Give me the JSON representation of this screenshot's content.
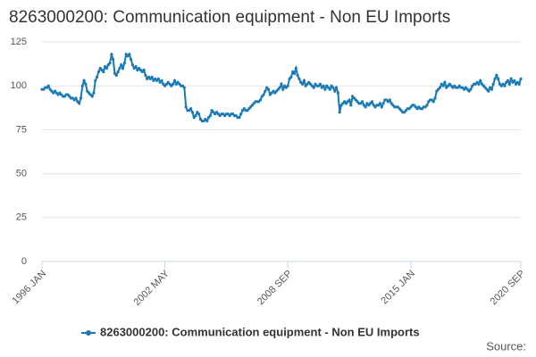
{
  "chart_data": {
    "type": "line",
    "title": "8263000200: Communication equipment - Non EU Imports",
    "source": "Source:",
    "categories": [
      "1996 JAN",
      null,
      null,
      null,
      null,
      null,
      null,
      null,
      null,
      null,
      null,
      null,
      null,
      null,
      null,
      null,
      null,
      null,
      null,
      null,
      null,
      null,
      null,
      null,
      null,
      null,
      null,
      null,
      null,
      null,
      null,
      null,
      null,
      null,
      null,
      null,
      null,
      null,
      null,
      null,
      null,
      null,
      null,
      null,
      null,
      null,
      null,
      null,
      null,
      null,
      null,
      null,
      null,
      null,
      null,
      null,
      null,
      null,
      null,
      null,
      null,
      null,
      null,
      null,
      null,
      null,
      null,
      null,
      null,
      null,
      null,
      null,
      null,
      null,
      null,
      null,
      "2002 MAY",
      null,
      null,
      null,
      null,
      null,
      null,
      null,
      null,
      null,
      null,
      null,
      null,
      null,
      null,
      null,
      null,
      null,
      null,
      null,
      null,
      null,
      null,
      null,
      null,
      null,
      null,
      null,
      null,
      null,
      null,
      null,
      null,
      null,
      null,
      null,
      null,
      null,
      null,
      null,
      null,
      null,
      null,
      null,
      null,
      null,
      null,
      null,
      null,
      null,
      null,
      null,
      null,
      null,
      null,
      null,
      null,
      null,
      null,
      null,
      null,
      null,
      null,
      null,
      null,
      null,
      null,
      null,
      null,
      null,
      null,
      null,
      null,
      null,
      null,
      null,
      "2008 SEP",
      null,
      null,
      null,
      null,
      null,
      null,
      null,
      null,
      null,
      null,
      null,
      null,
      null,
      null,
      null,
      null,
      null,
      null,
      null,
      null,
      null,
      null,
      null,
      null,
      null,
      null,
      null,
      null,
      null,
      null,
      null,
      null,
      null,
      null,
      null,
      null,
      null,
      null,
      null,
      null,
      null,
      null,
      null,
      null,
      null,
      null,
      null,
      null,
      null,
      null,
      null,
      null,
      null,
      null,
      null,
      null,
      null,
      null,
      null,
      null,
      null,
      null,
      null,
      null,
      null,
      null,
      null,
      null,
      null,
      null,
      null,
      null,
      null,
      null,
      null,
      "2015 JAN",
      null,
      null,
      null,
      null,
      null,
      null,
      null,
      null,
      null,
      null,
      null,
      null,
      null,
      null,
      null,
      null,
      null,
      null,
      null,
      null,
      null,
      null,
      null,
      null,
      null,
      null,
      null,
      null,
      null,
      null,
      null,
      null,
      null,
      null,
      null,
      null,
      null,
      null,
      null,
      null,
      null,
      null,
      null,
      null,
      null,
      null,
      null,
      null,
      null,
      null,
      null,
      null,
      null,
      null,
      null,
      null,
      null,
      null,
      null,
      null,
      null,
      null,
      null,
      null,
      null,
      null,
      null,
      "2020 SEP"
    ],
    "series": [
      {
        "name": "8263000200: Communication equipment - Non EU Imports",
        "color": "#1a7ab5",
        "values": [
          98,
          98,
          99,
          99,
          100,
          98,
          97,
          96,
          97,
          96,
          95,
          96,
          95,
          94,
          94,
          95,
          95,
          94,
          93,
          93,
          92,
          93,
          91,
          90,
          93,
          100,
          103,
          101,
          97,
          96,
          95,
          94,
          96,
          103,
          105,
          108,
          110,
          109,
          108,
          111,
          110,
          112,
          113,
          118,
          115,
          107,
          106,
          108,
          110,
          112,
          110,
          113,
          118,
          117,
          118,
          115,
          112,
          110,
          111,
          109,
          110,
          109,
          108,
          109,
          106,
          104,
          105,
          104,
          105,
          103,
          104,
          103,
          104,
          102,
          103,
          101,
          100,
          101,
          102,
          101,
          100,
          101,
          103,
          101,
          102,
          101,
          100,
          100,
          99,
          88,
          86,
          86,
          87,
          85,
          82,
          83,
          85,
          84,
          81,
          80,
          80,
          81,
          80,
          82,
          83,
          86,
          85,
          84,
          85,
          84,
          83,
          84,
          84,
          83,
          84,
          84,
          83,
          84,
          84,
          83,
          83,
          82,
          82,
          84,
          86,
          87,
          86,
          86,
          87,
          88,
          89,
          90,
          91,
          91,
          91,
          92,
          94,
          95,
          97,
          99,
          98,
          95,
          96,
          97,
          96,
          97,
          98,
          99,
          101,
          98,
          100,
          99,
          100,
          104,
          105,
          108,
          107,
          110,
          106,
          104,
          102,
          101,
          103,
          100,
          101,
          102,
          101,
          100,
          99,
          101,
          100,
          100,
          101,
          99,
          100,
          98,
          100,
          99,
          98,
          100,
          99,
          97,
          99,
          96,
          85,
          89,
          90,
          91,
          90,
          91,
          92,
          89,
          94,
          93,
          92,
          91,
          90,
          90,
          91,
          89,
          88,
          90,
          89,
          90,
          91,
          89,
          88,
          89,
          89,
          90,
          88,
          90,
          92,
          92,
          91,
          92,
          90,
          89,
          88,
          88,
          88,
          87,
          86,
          85,
          85,
          86,
          87,
          87,
          88,
          89,
          89,
          88,
          87,
          88,
          87,
          87,
          88,
          88,
          89,
          91,
          92,
          92,
          91,
          93,
          97,
          98,
          99,
          101,
          100,
          102,
          99,
          100,
          101,
          100,
          99,
          100,
          99,
          99,
          100,
          99,
          99,
          98,
          99,
          98,
          97,
          98,
          100,
          101,
          101,
          102,
          101,
          103,
          101,
          100,
          99,
          98,
          97,
          99,
          98,
          101,
          104,
          106,
          104,
          101,
          100,
          101,
          100,
          102,
          103,
          101,
          104,
          102,
          103,
          101,
          102,
          101,
          104
        ]
      }
    ],
    "ylim": [
      0,
      125
    ],
    "yticks": [
      0,
      25,
      50,
      75,
      100,
      125
    ],
    "grid": true
  }
}
